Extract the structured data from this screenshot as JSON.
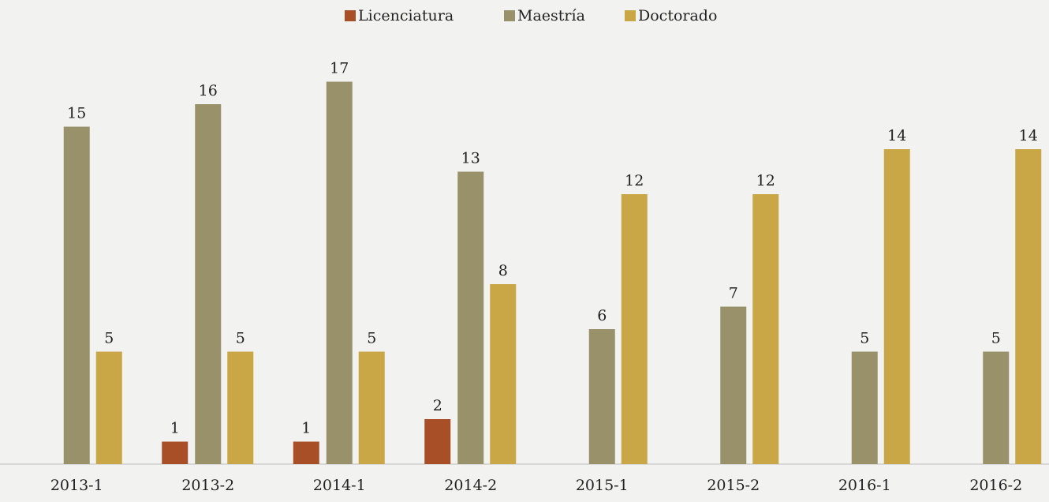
{
  "chart_data": {
    "type": "bar",
    "categories": [
      "2013-1",
      "2013-2",
      "2014-1",
      "2014-2",
      "2015-1",
      "2015-2",
      "2016-1",
      "2016-2"
    ],
    "series": [
      {
        "name": "Licenciatura",
        "color": "#a84f28",
        "values": [
          null,
          1,
          1,
          2,
          null,
          null,
          null,
          null
        ]
      },
      {
        "name": "Maestría",
        "color": "#98916a",
        "values": [
          15,
          16,
          17,
          13,
          6,
          7,
          5,
          5
        ]
      },
      {
        "name": "Doctorado",
        "color": "#c9a646",
        "values": [
          5,
          5,
          5,
          8,
          12,
          12,
          14,
          14
        ]
      }
    ],
    "ylim": [
      0,
      20
    ]
  }
}
